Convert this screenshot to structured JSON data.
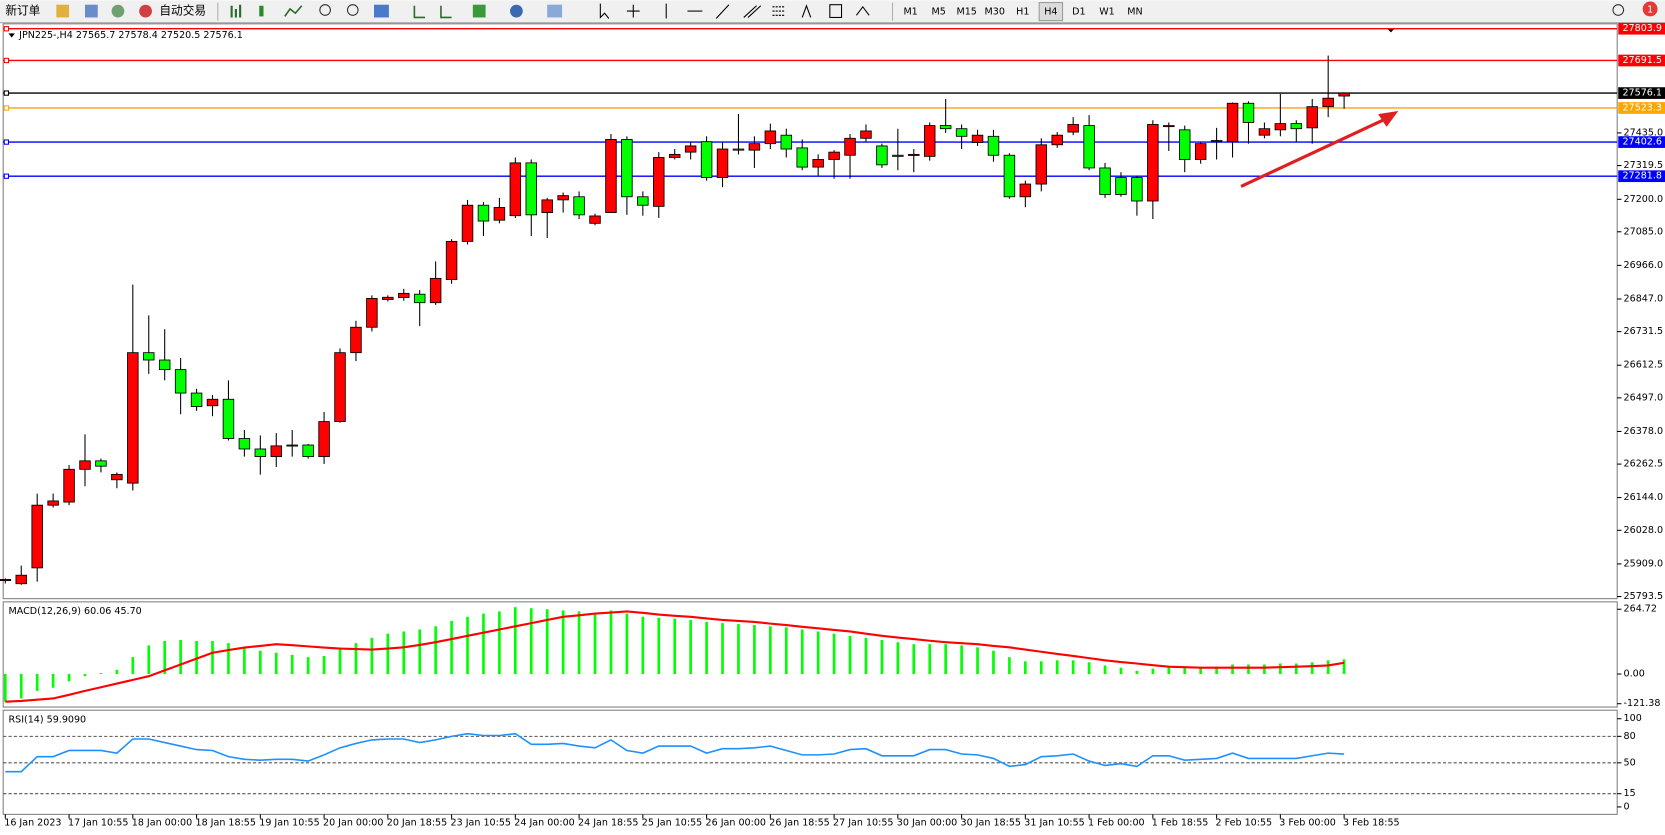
{
  "toolbar": {
    "buttons": [
      "新订单",
      "自动交易"
    ],
    "timeframes": [
      "M1",
      "M5",
      "M15",
      "M30",
      "H1",
      "H4",
      "D1",
      "W1",
      "MN"
    ],
    "active_timeframe": "H4",
    "notifications": "1"
  },
  "chart_data": [
    {
      "type": "candlestick",
      "title": "JPN225-,H4  27565.7 27578.4 27520.5 27576.1",
      "categories": [
        "16 Jan 2023",
        null,
        null,
        null,
        "17 Jan 10:55",
        null,
        null,
        null,
        "18 Jan 00:00",
        null,
        null,
        null,
        "18 Jan 18:55",
        null,
        null,
        null,
        "19 Jan 10:55",
        null,
        null,
        null,
        "20 Jan 00:00",
        null,
        null,
        null,
        "20 Jan 18:55",
        null,
        null,
        null,
        "23 Jan 10:55",
        null,
        null,
        null,
        "24 Jan 00:00",
        null,
        null,
        null,
        "24 Jan 18:55",
        null,
        null,
        null,
        "25 Jan 10:55",
        null,
        null,
        null,
        "26 Jan 00:00",
        null,
        null,
        null,
        "26 Jan 18:55",
        null,
        null,
        null,
        "27 Jan 10:55",
        null,
        null,
        null,
        "30 Jan 00:00",
        null,
        null,
        null,
        "30 Jan 18:55",
        null,
        null,
        null,
        "31 Jan 10:55",
        null,
        null,
        null,
        "1 Feb 00:00",
        null,
        null,
        null,
        "1 Feb 18:55",
        null,
        null,
        null,
        "2 Feb 10:55",
        null,
        null,
        null,
        "3 Feb 00:00",
        null,
        null,
        null,
        "3 Feb 18:55"
      ],
      "open": [
        25850,
        25839,
        25895,
        26117,
        26128,
        26244,
        26274,
        26207,
        26195,
        26657,
        26631,
        26597,
        26514,
        26469,
        26492,
        26353,
        26316,
        26289,
        26327,
        26330,
        26289,
        26413,
        26657,
        26747,
        26845,
        26852,
        26864,
        26834,
        26916,
        27051,
        27179,
        27126,
        27142,
        27329,
        27153,
        27198,
        27209,
        27115,
        27153,
        27412,
        27209,
        27175,
        27348,
        27367,
        27404,
        27277,
        27378,
        27374,
        27397,
        27427,
        27382,
        27314,
        27341,
        27356,
        27416,
        27389,
        27356,
        27356,
        27352,
        27461,
        27450,
        27401,
        27423,
        27356,
        27209,
        27254,
        27393,
        27438,
        27461,
        27311,
        27277,
        27277,
        27194,
        27461,
        27446,
        27341,
        27404,
        27404,
        27540,
        27427,
        27446,
        27468,
        27453,
        27528,
        27565.7
      ],
      "high": [
        25858,
        25903,
        26158,
        26158,
        26259,
        26368,
        26282,
        26233,
        26898,
        26789,
        26740,
        26638,
        26529,
        26507,
        26559,
        26383,
        26364,
        26372,
        26383,
        26334,
        26447,
        26672,
        26770,
        26860,
        26860,
        26883,
        26879,
        26980,
        27059,
        27198,
        27190,
        27205,
        27348,
        27341,
        27205,
        27224,
        27228,
        27149,
        27431,
        27423,
        27228,
        27367,
        27378,
        27404,
        27423,
        27404,
        27502,
        27423,
        27468,
        27450,
        27412,
        27359,
        27374,
        27431,
        27465,
        27397,
        27450,
        27378,
        27472,
        27555,
        27465,
        27446,
        27446,
        27363,
        27266,
        27416,
        27438,
        27491,
        27498,
        27329,
        27296,
        27284,
        27480,
        27472,
        27461,
        27404,
        27453,
        27543,
        27547,
        27472,
        27573,
        27480,
        27555,
        27709,
        27578.4
      ],
      "low": [
        25840,
        25835,
        25846,
        26109,
        26117,
        26184,
        26233,
        26177,
        26169,
        26582,
        26559,
        26439,
        26451,
        26432,
        26346,
        26289,
        26225,
        26252,
        26289,
        26282,
        26263,
        26409,
        26627,
        26732,
        26838,
        26841,
        26751,
        26826,
        26901,
        27040,
        27070,
        27115,
        27134,
        27070,
        27063,
        27153,
        27130,
        27108,
        27153,
        27145,
        27142,
        27134,
        27341,
        27341,
        27266,
        27243,
        27359,
        27311,
        27378,
        27348,
        27303,
        27284,
        27273,
        27273,
        27404,
        27311,
        27303,
        27296,
        27337,
        27435,
        27378,
        27389,
        27333,
        27202,
        27172,
        27228,
        27382,
        27427,
        27303,
        27205,
        27209,
        27142,
        27130,
        27371,
        27296,
        27326,
        27341,
        27348,
        27397,
        27416,
        27423,
        27404,
        27397,
        27491,
        27520.5
      ],
      "close": [
        25854,
        25869,
        26117,
        26132,
        26244,
        26274,
        26255,
        26226,
        26657,
        26631,
        26597,
        26514,
        26466,
        26492,
        26353,
        26316,
        26289,
        26327,
        26330,
        26289,
        26413,
        26657,
        26747,
        26849,
        26853,
        26867,
        26834,
        26920,
        27051,
        27179,
        27123,
        27171,
        27329,
        27145,
        27198,
        27213,
        27145,
        27141,
        27412,
        27209,
        27179,
        27348,
        27359,
        27389,
        27277,
        27378,
        27374,
        27397,
        27442,
        27378,
        27314,
        27341,
        27367,
        27416,
        27442,
        27322,
        27352,
        27359,
        27461,
        27450,
        27423,
        27427,
        27356,
        27209,
        27254,
        27393,
        27427,
        27465,
        27311,
        27217,
        27217,
        27194,
        27465,
        27461,
        27341,
        27397,
        27408,
        27540,
        27472,
        27450,
        27468,
        27450,
        27528,
        27558,
        27576.1
      ],
      "up_color": "#ff0000",
      "down_color": "#00ff00",
      "ylim": [
        25786,
        27810
      ],
      "yticks": [
        25793.5,
        {
          "value": 25909,
          "label": "25909.0"
        },
        {
          "value": 26028,
          "label": "26028.0"
        },
        {
          "value": 26144,
          "label": "26144.0"
        },
        26262.5,
        {
          "value": 26378,
          "label": "26378.0"
        },
        {
          "value": 26497,
          "label": "26497.0"
        },
        26612.5,
        26731.5,
        {
          "value": 26847,
          "label": "26847.0"
        },
        {
          "value": 26966,
          "label": "26966.0"
        },
        {
          "value": 27085,
          "label": "27085.0"
        },
        {
          "value": 27200,
          "label": "27200.0"
        },
        27319.5,
        {
          "value": 27435,
          "label": "27435.0"
        }
      ],
      "levels": [
        {
          "value": 27803.9,
          "color": "#ff0000"
        },
        {
          "value": 27691.5,
          "color": "#ff0000"
        },
        {
          "value": 27576.1,
          "color": "#000000"
        },
        {
          "value": 27523.3,
          "color": "#ffa500"
        },
        {
          "value": 27402.6,
          "color": "#0000ff"
        },
        {
          "value": 27281.8,
          "color": "#0000ff"
        }
      ]
    },
    {
      "type": "macd",
      "title": "MACD(12,26,9) 60.06 45.70",
      "series": [
        {
          "kind": "histogram",
          "color": "#00ff00",
          "values": [
            -113,
            -100,
            -69,
            -56,
            -30,
            -9,
            4,
            17,
            69,
            117,
            135,
            139,
            135,
            135,
            126,
            109,
            95,
            87,
            78,
            69,
            74,
            104,
            126,
            148,
            165,
            174,
            182,
            195,
            217,
            234,
            247,
            256,
            273,
            269,
            265,
            260,
            256,
            247,
            260,
            247,
            234,
            230,
            226,
            221,
            213,
            208,
            204,
            200,
            195,
            191,
            182,
            174,
            165,
            156,
            148,
            139,
            130,
            122,
            122,
            122,
            117,
            109,
            95,
            69,
            52,
            52,
            56,
            56,
            48,
            35,
            26,
            13,
            22,
            30,
            30,
            30,
            30,
            39,
            39,
            39,
            43,
            43,
            48,
            56,
            60.06
          ]
        },
        {
          "kind": "line",
          "color": "#ff0000",
          "values": [
            -113,
            -110,
            -105,
            -100,
            -85,
            -69,
            -54,
            -39,
            -24,
            -9,
            15,
            39,
            63,
            87,
            98,
            108,
            115,
            122,
            118,
            113,
            108,
            104,
            102,
            100,
            104,
            109,
            119,
            130,
            143,
            156,
            169,
            182,
            195,
            208,
            221,
            234,
            240,
            247,
            251,
            256,
            250,
            243,
            238,
            234,
            227,
            221,
            217,
            213,
            206,
            200,
            193,
            187,
            180,
            174,
            165,
            156,
            149,
            143,
            136,
            130,
            126,
            122,
            115,
            109,
            100,
            91,
            82,
            74,
            65,
            56,
            49,
            43,
            36,
            30,
            28,
            26,
            26,
            26,
            26,
            26,
            28,
            30,
            32,
            35,
            45.7
          ]
        }
      ],
      "ylim": [
        -135,
        295
      ],
      "yticks": [
        264.72,
        {
          "value": 0,
          "label": "0.00"
        },
        -121.38
      ]
    },
    {
      "type": "rsi",
      "title": "RSI(14) 59.9090",
      "color": "#1e90ff",
      "values": [
        40,
        40,
        57,
        57,
        64,
        64,
        64,
        61,
        77,
        77,
        73,
        69,
        65,
        64,
        57,
        54,
        53,
        54,
        54,
        52,
        59,
        67,
        72,
        76,
        77,
        77,
        73,
        76,
        80,
        83,
        81,
        81,
        83,
        71,
        71,
        72,
        69,
        67,
        76,
        64,
        61,
        69,
        69,
        69,
        61,
        66,
        66,
        67,
        69,
        64,
        59,
        59,
        60,
        65,
        66,
        58,
        58,
        58,
        65,
        65,
        60,
        59,
        55,
        46,
        48,
        57,
        58,
        60,
        52,
        47,
        49,
        46,
        58,
        58,
        53,
        54,
        55,
        61,
        55,
        55,
        55,
        55,
        58,
        61,
        59.909
      ],
      "ylim": [
        0,
        100
      ],
      "yticks": [
        0,
        15,
        50,
        80,
        100
      ],
      "levels": [
        15,
        50,
        80
      ]
    }
  ]
}
